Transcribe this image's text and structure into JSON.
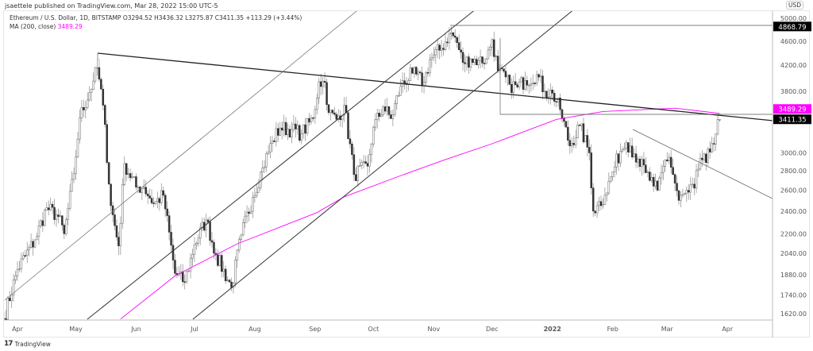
{
  "header": {
    "published": "jsaettele published on TradingView.com, Mar 28, 2022 15:00 UTC-5",
    "symbol_line": "Ethereum / U.S. Dollar, 1D, BITSTAMP  O3294.52  H3436.32  L3275.87  C3411.35  +113.29 (+3.44%)",
    "ma_label": "MA (200, close)",
    "ma_value": "3489.29"
  },
  "currency": "USD",
  "footer": {
    "logo_text": "TradingView",
    "logo_mark": "17"
  },
  "colors": {
    "ma": "#ff00ff",
    "label_bg": "#000000",
    "up": "#ffffff",
    "down": "#333333"
  },
  "chart_data": {
    "type": "candlestick",
    "symbol": "ETHUSD",
    "interval": "1D",
    "y_scale": "log",
    "grid": false,
    "ylim": [
      1560,
      5000
    ],
    "y_ticks": [
      1620,
      1740,
      1880,
      2040,
      2200,
      2400,
      2600,
      2800,
      3000,
      3800,
      4200,
      4600,
      5000
    ],
    "y_tick_labels": [
      "1620.00",
      "1740.00",
      "1880.00",
      "2040.00",
      "2200.00",
      "2400.00",
      "2600.00",
      "2800.00",
      "3000.00",
      "3800.00",
      "4200.00",
      "4600.00",
      "5000.00"
    ],
    "x_ticks": [
      {
        "date": "2021-04-01",
        "label": "Apr"
      },
      {
        "date": "2021-05-01",
        "label": "May"
      },
      {
        "date": "2021-06-01",
        "label": "Jun"
      },
      {
        "date": "2021-07-01",
        "label": "Jul"
      },
      {
        "date": "2021-08-01",
        "label": "Aug"
      },
      {
        "date": "2021-09-01",
        "label": "Sep"
      },
      {
        "date": "2021-10-01",
        "label": "Oct"
      },
      {
        "date": "2021-11-01",
        "label": "Nov"
      },
      {
        "date": "2021-12-01",
        "label": "Dec"
      },
      {
        "date": "2022-01-01",
        "label": "2022",
        "bold": true
      },
      {
        "date": "2022-02-01",
        "label": "Feb"
      },
      {
        "date": "2022-03-01",
        "label": "Mar"
      },
      {
        "date": "2022-04-01",
        "label": "Apr"
      }
    ],
    "price_labels": [
      {
        "value": 4868.79,
        "text": "4868.79",
        "color": "#000000"
      },
      {
        "value": 3489.29,
        "text": "3489.29",
        "color": "#ff00ff"
      },
      {
        "value": 3411.35,
        "text": "3411.35",
        "color": "#000000"
      }
    ],
    "closes": [
      [
        "2021-03-25",
        1590
      ],
      [
        "2021-04-01",
        1920
      ],
      [
        "2021-04-10",
        2150
      ],
      [
        "2021-04-16",
        2430
      ],
      [
        "2021-04-22",
        2350
      ],
      [
        "2021-04-25",
        2200
      ],
      [
        "2021-04-30",
        2770
      ],
      [
        "2021-05-03",
        3430
      ],
      [
        "2021-05-10",
        3950
      ],
      [
        "2021-05-12",
        4160
      ],
      [
        "2021-05-15",
        3600
      ],
      [
        "2021-05-19",
        2450
      ],
      [
        "2021-05-23",
        2100
      ],
      [
        "2021-05-26",
        2880
      ],
      [
        "2021-06-01",
        2630
      ],
      [
        "2021-06-05",
        2630
      ],
      [
        "2021-06-10",
        2470
      ],
      [
        "2021-06-15",
        2550
      ],
      [
        "2021-06-21",
        1890
      ],
      [
        "2021-06-26",
        1830
      ],
      [
        "2021-07-01",
        2110
      ],
      [
        "2021-07-07",
        2320
      ],
      [
        "2021-07-12",
        2030
      ],
      [
        "2021-07-20",
        1790
      ],
      [
        "2021-07-25",
        2190
      ],
      [
        "2021-07-31",
        2530
      ],
      [
        "2021-08-05",
        2830
      ],
      [
        "2021-08-10",
        3140
      ],
      [
        "2021-08-14",
        3300
      ],
      [
        "2021-08-20",
        3280
      ],
      [
        "2021-08-25",
        3230
      ],
      [
        "2021-08-31",
        3430
      ],
      [
        "2021-09-03",
        3940
      ],
      [
        "2021-09-06",
        3930
      ],
      [
        "2021-09-08",
        3500
      ],
      [
        "2021-09-12",
        3410
      ],
      [
        "2021-09-16",
        3600
      ],
      [
        "2021-09-21",
        2760
      ],
      [
        "2021-09-28",
        2850
      ],
      [
        "2021-10-01",
        3310
      ],
      [
        "2021-10-06",
        3580
      ],
      [
        "2021-10-10",
        3420
      ],
      [
        "2021-10-15",
        3870
      ],
      [
        "2021-10-21",
        4070
      ],
      [
        "2021-10-27",
        3930
      ],
      [
        "2021-10-30",
        4290
      ],
      [
        "2021-11-05",
        4480
      ],
      [
        "2021-11-09",
        4730
      ],
      [
        "2021-11-12",
        4670
      ],
      [
        "2021-11-16",
        4240
      ],
      [
        "2021-11-20",
        4300
      ],
      [
        "2021-11-24",
        4270
      ],
      [
        "2021-11-28",
        4300
      ],
      [
        "2021-12-01",
        4630
      ],
      [
        "2021-12-04",
        4110
      ],
      [
        "2021-12-10",
        3900
      ],
      [
        "2021-12-14",
        3860
      ],
      [
        "2021-12-18",
        3960
      ],
      [
        "2021-12-24",
        4050
      ],
      [
        "2021-12-28",
        3800
      ],
      [
        "2022-01-01",
        3770
      ],
      [
        "2022-01-05",
        3540
      ],
      [
        "2022-01-10",
        3080
      ],
      [
        "2022-01-15",
        3330
      ],
      [
        "2022-01-20",
        3000
      ],
      [
        "2022-01-22",
        2400
      ],
      [
        "2022-01-24",
        2450
      ],
      [
        "2022-01-28",
        2550
      ],
      [
        "2022-02-01",
        2790
      ],
      [
        "2022-02-05",
        3020
      ],
      [
        "2022-02-08",
        3120
      ],
      [
        "2022-02-10",
        3080
      ],
      [
        "2022-02-14",
        2930
      ],
      [
        "2022-02-18",
        2780
      ],
      [
        "2022-02-22",
        2640
      ],
      [
        "2022-02-24",
        2600
      ],
      [
        "2022-02-28",
        2920
      ],
      [
        "2022-03-02",
        2950
      ],
      [
        "2022-03-07",
        2500
      ],
      [
        "2022-03-12",
        2580
      ],
      [
        "2022-03-15",
        2620
      ],
      [
        "2022-03-18",
        2940
      ],
      [
        "2022-03-21",
        2890
      ],
      [
        "2022-03-24",
        3110
      ],
      [
        "2022-03-28",
        3411.35
      ]
    ],
    "ma200": [
      [
        "2021-05-24",
        1587
      ],
      [
        "2021-06-21",
        1872
      ],
      [
        "2021-07-23",
        2117
      ],
      [
        "2021-09-02",
        2386
      ],
      [
        "2021-09-16",
        2535
      ],
      [
        "2021-10-13",
        2734
      ],
      [
        "2021-11-07",
        2924
      ],
      [
        "2021-12-01",
        3106
      ],
      [
        "2022-01-03",
        3410
      ],
      [
        "2022-01-27",
        3515
      ],
      [
        "2022-03-05",
        3560
      ],
      [
        "2022-03-28",
        3489.29
      ]
    ]
  }
}
